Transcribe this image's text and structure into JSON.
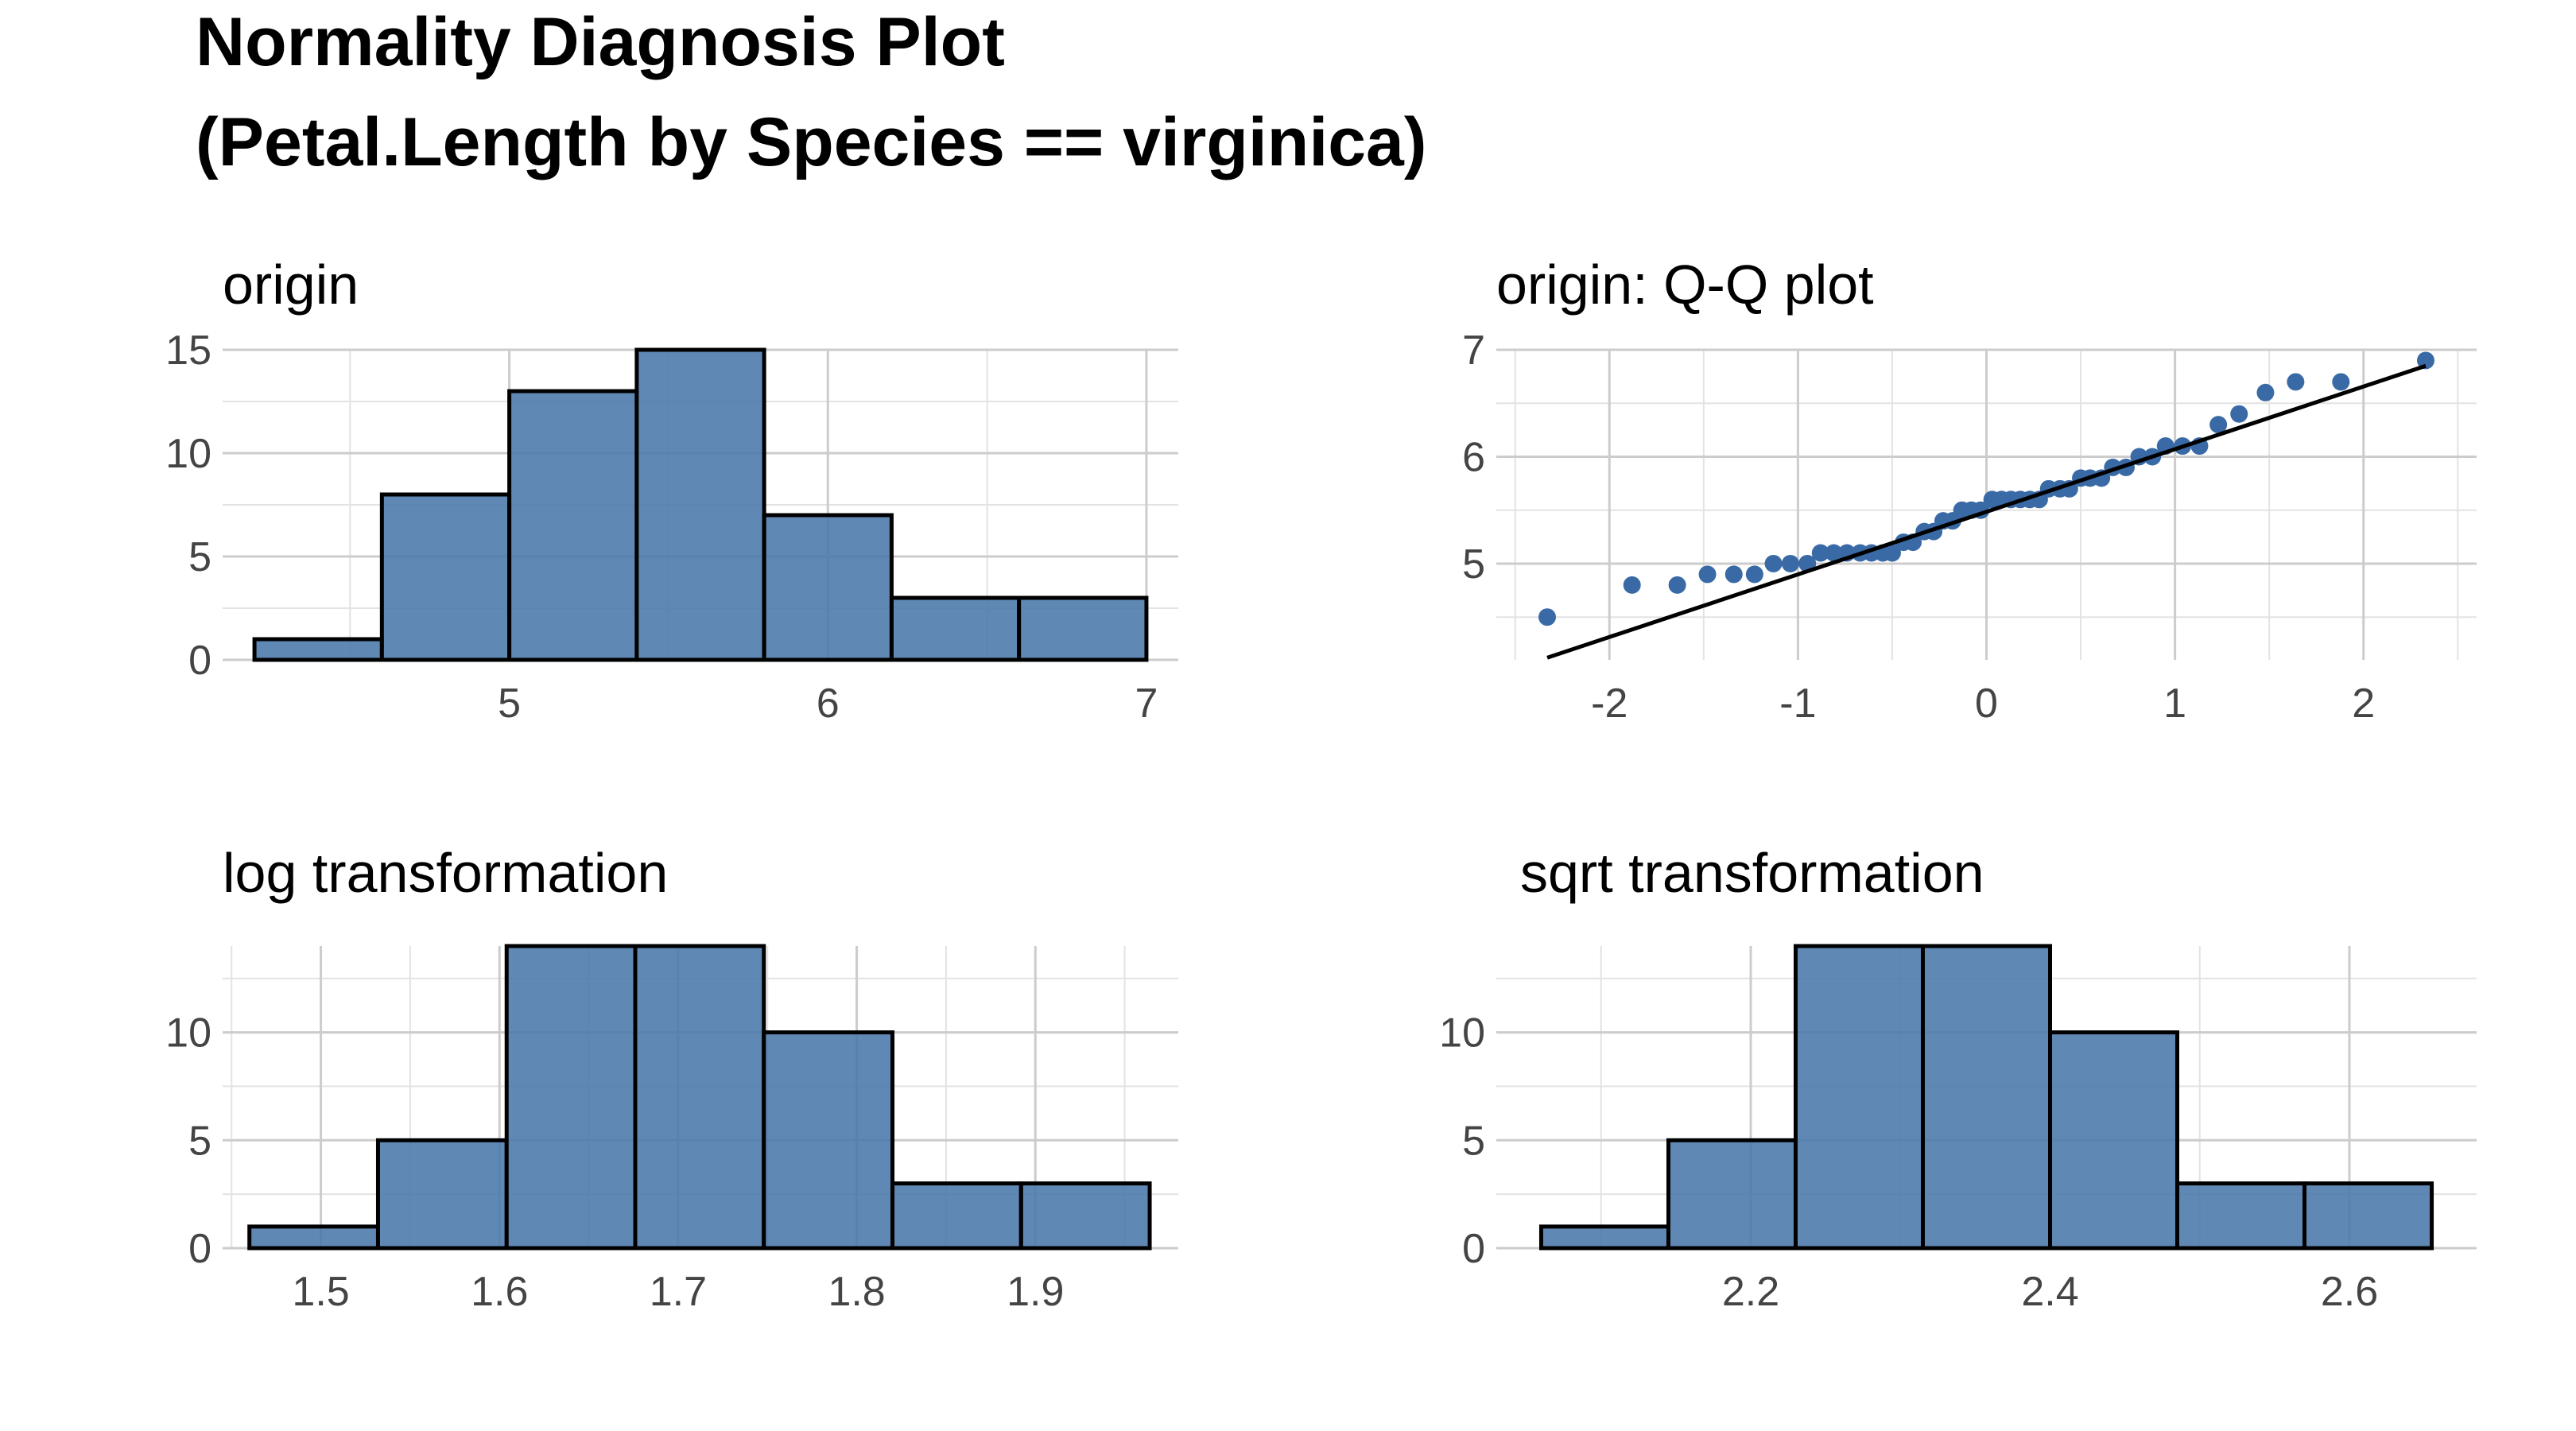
{
  "title": {
    "line1": "Normality Diagnosis Plot",
    "line2": "(Petal.Length by Species == virginica)"
  },
  "colors": {
    "bar_fill": "#4a77aa",
    "point": "#3a6aa5",
    "line": "#000000",
    "grid": "#cccccc"
  },
  "chart_data": [
    {
      "id": "origin",
      "type": "bar",
      "title": "origin",
      "bins": [
        [
          4.2,
          4.6
        ],
        [
          4.6,
          5.0
        ],
        [
          5.0,
          5.4
        ],
        [
          5.4,
          5.8
        ],
        [
          5.8,
          6.2
        ],
        [
          6.2,
          6.6
        ],
        [
          6.6,
          7.0
        ]
      ],
      "values": [
        1,
        8,
        13,
        15,
        7,
        3,
        3
      ],
      "xlim": [
        4.1,
        7.1
      ],
      "ylim": [
        0,
        15
      ],
      "xticks": [
        5,
        6,
        7
      ],
      "xtick_labels": [
        "5",
        "6",
        "7"
      ],
      "yticks": [
        0,
        5,
        10,
        15
      ],
      "ytick_labels": [
        "0",
        "5",
        "10",
        "15"
      ],
      "grid": true
    },
    {
      "id": "qq",
      "type": "scatter",
      "title": "origin: Q-Q plot",
      "points": [
        [
          -2.33,
          4.5
        ],
        [
          -1.88,
          4.8
        ],
        [
          -1.64,
          4.8
        ],
        [
          -1.48,
          4.9
        ],
        [
          -1.34,
          4.9
        ],
        [
          -1.23,
          4.9
        ],
        [
          -1.13,
          5.0
        ],
        [
          -1.04,
          5.0
        ],
        [
          -0.95,
          5.0
        ],
        [
          -0.88,
          5.1
        ],
        [
          -0.81,
          5.1
        ],
        [
          -0.74,
          5.1
        ],
        [
          -0.67,
          5.1
        ],
        [
          -0.61,
          5.1
        ],
        [
          -0.55,
          5.1
        ],
        [
          -0.5,
          5.1
        ],
        [
          -0.44,
          5.2
        ],
        [
          -0.39,
          5.2
        ],
        [
          -0.33,
          5.3
        ],
        [
          -0.28,
          5.3
        ],
        [
          -0.23,
          5.4
        ],
        [
          -0.18,
          5.4
        ],
        [
          -0.13,
          5.5
        ],
        [
          -0.08,
          5.5
        ],
        [
          -0.03,
          5.5
        ],
        [
          0.03,
          5.6
        ],
        [
          0.08,
          5.6
        ],
        [
          0.13,
          5.6
        ],
        [
          0.18,
          5.6
        ],
        [
          0.23,
          5.6
        ],
        [
          0.28,
          5.6
        ],
        [
          0.33,
          5.7
        ],
        [
          0.39,
          5.7
        ],
        [
          0.44,
          5.7
        ],
        [
          0.5,
          5.8
        ],
        [
          0.55,
          5.8
        ],
        [
          0.61,
          5.8
        ],
        [
          0.67,
          5.9
        ],
        [
          0.74,
          5.9
        ],
        [
          0.81,
          6.0
        ],
        [
          0.88,
          6.0
        ],
        [
          0.95,
          6.1
        ],
        [
          1.04,
          6.1
        ],
        [
          1.13,
          6.1
        ],
        [
          1.23,
          6.3
        ],
        [
          1.34,
          6.4
        ],
        [
          1.48,
          6.6
        ],
        [
          1.64,
          6.7
        ],
        [
          1.88,
          6.7
        ],
        [
          2.33,
          6.9
        ]
      ],
      "reference_line": [
        [
          -2.33,
          4.12
        ],
        [
          2.33,
          6.85
        ]
      ],
      "xlim": [
        -2.6,
        2.6
      ],
      "ylim": [
        4.1,
        7.0
      ],
      "xticks": [
        -2,
        -1,
        0,
        1,
        2
      ],
      "xtick_labels": [
        "-2",
        "-1",
        "0",
        "1",
        "2"
      ],
      "yticks": [
        5,
        6,
        7
      ],
      "ytick_labels": [
        "5",
        "6",
        "7"
      ],
      "grid": true
    },
    {
      "id": "log",
      "type": "bar",
      "title": "log transformation",
      "bins": [
        [
          1.46,
          1.532
        ],
        [
          1.532,
          1.604
        ],
        [
          1.604,
          1.676
        ],
        [
          1.676,
          1.748
        ],
        [
          1.748,
          1.82
        ],
        [
          1.82,
          1.892
        ],
        [
          1.892,
          1.964
        ]
      ],
      "values": [
        1,
        5,
        14,
        14,
        10,
        3,
        3
      ],
      "xlim": [
        1.445,
        1.98
      ],
      "ylim": [
        0,
        14
      ],
      "xticks": [
        1.5,
        1.6,
        1.7,
        1.8,
        1.9
      ],
      "xtick_labels": [
        "1.5",
        "1.6",
        "1.7",
        "1.8",
        "1.9"
      ],
      "yticks": [
        0,
        5,
        10
      ],
      "ytick_labels": [
        "0",
        "5",
        "10"
      ],
      "grid": true
    },
    {
      "id": "sqrt",
      "type": "bar",
      "title": "sqrt transformation",
      "bins": [
        [
          2.06,
          2.145
        ],
        [
          2.145,
          2.23
        ],
        [
          2.23,
          2.315
        ],
        [
          2.315,
          2.4
        ],
        [
          2.4,
          2.485
        ],
        [
          2.485,
          2.57
        ],
        [
          2.57,
          2.655
        ]
      ],
      "values": [
        1,
        5,
        14,
        14,
        10,
        3,
        3
      ],
      "xlim": [
        2.03,
        2.685
      ],
      "ylim": [
        0,
        14
      ],
      "xticks": [
        2.2,
        2.4,
        2.6
      ],
      "xtick_labels": [
        "2.2",
        "2.4",
        "2.6"
      ],
      "yticks": [
        0,
        5,
        10
      ],
      "ytick_labels": [
        "0",
        "5",
        "10"
      ],
      "grid": true
    }
  ]
}
